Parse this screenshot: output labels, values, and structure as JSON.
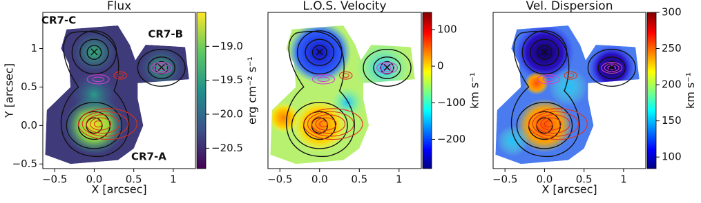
{
  "chart_data": [
    {
      "type": "image",
      "title": "Flux",
      "xlabel": "X [arcsec]",
      "ylabel": "Y [arcsec]",
      "xlim": [
        -0.65,
        1.28
      ],
      "ylim": [
        -0.56,
        1.47
      ],
      "xticks": [
        {
          "value": -0.5,
          "label": "−0.5"
        },
        {
          "value": 0,
          "label": "0.0"
        },
        0.5,
        1
      ],
      "yticks": [
        {
          "value": -0.5,
          "label": "−0.5"
        },
        {
          "value": 0,
          "label": "0.0"
        },
        0.5,
        1
      ],
      "colormap": "viridis",
      "colorbar_label": "erg cm⁻² s⁻¹",
      "clim": [
        -20.8,
        -18.5
      ],
      "cticks": [
        {
          "value": -20.5,
          "label": "−20.5"
        },
        {
          "value": -20,
          "label": "−20.0"
        },
        {
          "value": -19.5,
          "label": "−19.5"
        },
        {
          "value": -19,
          "label": "−19.0"
        }
      ],
      "annotations": [
        "CR7-C",
        "CR7-B",
        "CR7-A"
      ]
    },
    {
      "type": "image",
      "title": "L.O.S. Velocity",
      "xlim": [
        -0.65,
        1.28
      ],
      "ylim": [
        -0.56,
        1.47
      ],
      "xticks": [
        {
          "value": -0.5,
          "label": "−0.5"
        },
        {
          "value": 0,
          "label": "0.0"
        },
        0.5,
        1
      ],
      "colormap": "jet",
      "colorbar_label": "km s⁻¹",
      "clim": [
        -280,
        147
      ],
      "cticks": [
        {
          "value": -200,
          "label": "−200"
        },
        {
          "value": -100,
          "label": "−100"
        },
        0,
        100
      ]
    },
    {
      "type": "image",
      "title": "Vel. Dispersion",
      "xlabel": "X [arcsec]",
      "xlim": [
        -0.65,
        1.28
      ],
      "ylim": [
        -0.56,
        1.47
      ],
      "xticks": [
        {
          "value": -0.5,
          "label": "−0.5"
        },
        {
          "value": 0,
          "label": "0.0"
        },
        0.5,
        1
      ],
      "colormap": "jet",
      "colorbar_label": "km s⁻¹",
      "clim": [
        84,
        300
      ],
      "cticks": [
        100,
        150,
        200,
        250,
        300
      ]
    }
  ]
}
